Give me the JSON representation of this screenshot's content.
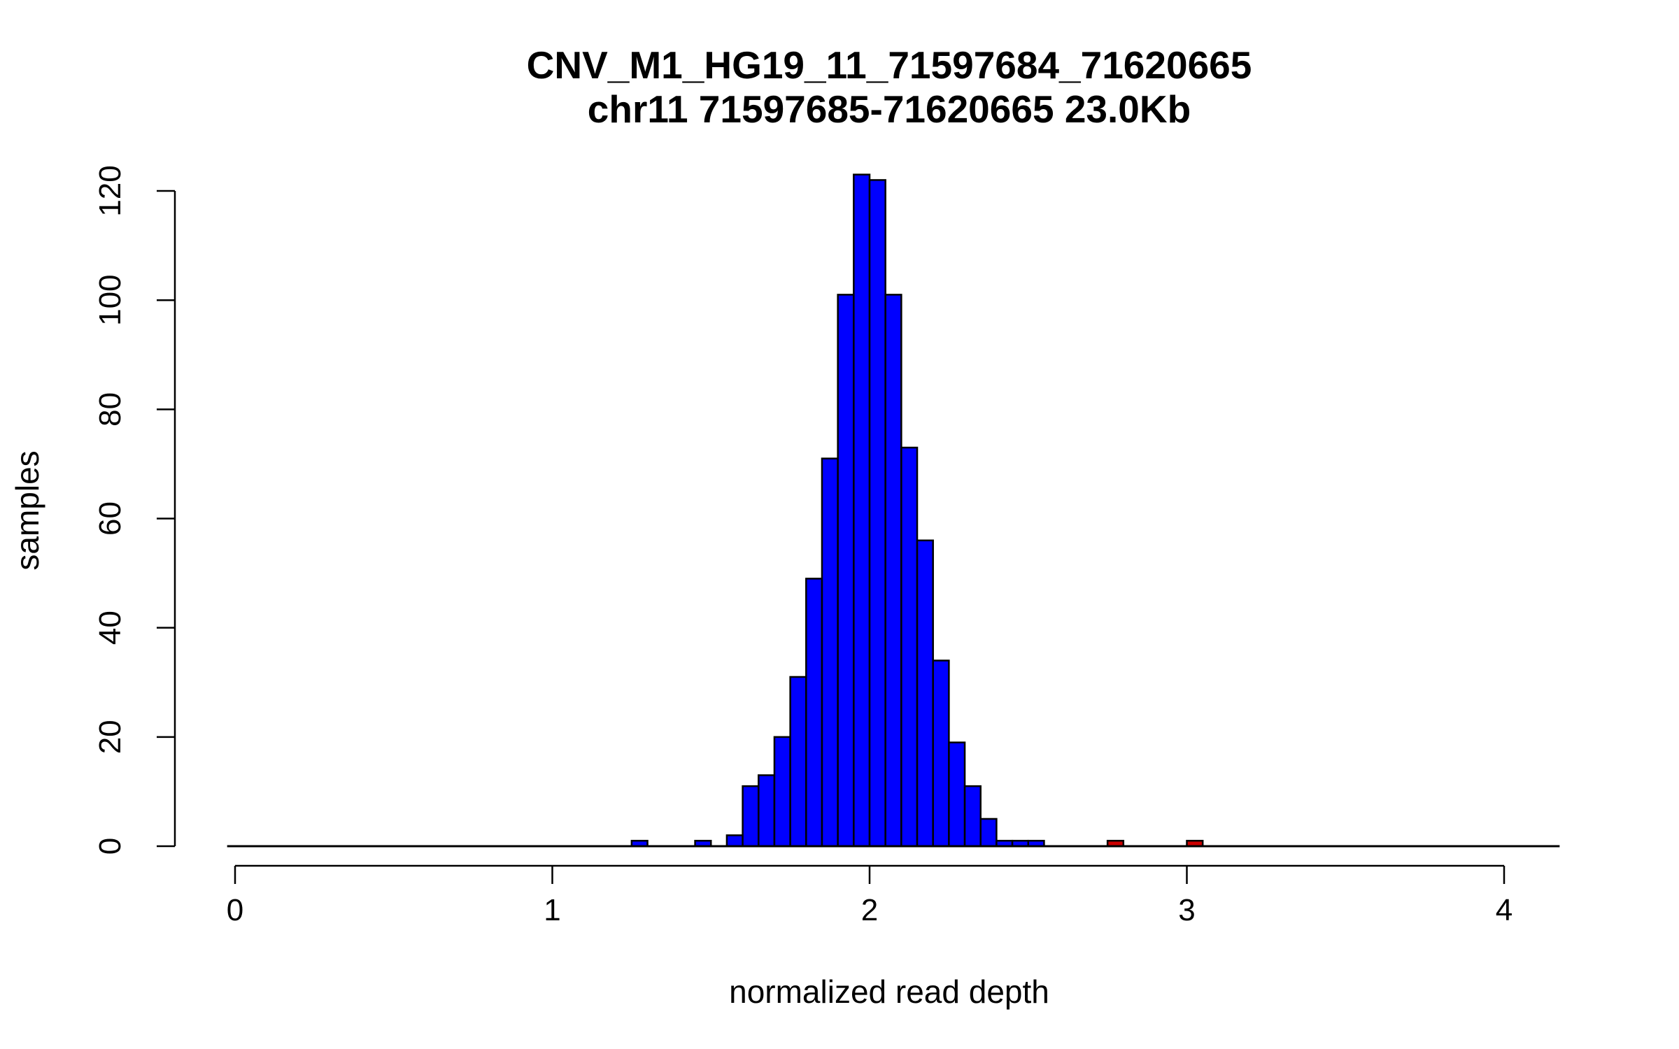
{
  "chart_data": {
    "type": "bar",
    "title": "CNV_M1_HG19_11_71597684_71620665",
    "subtitle": "chr11 71597685-71620665 23.0Kb",
    "xlabel": "normalized read depth",
    "ylabel": "samples",
    "xlim": [
      0,
      4
    ],
    "ylim": [
      0,
      120
    ],
    "x_ticks": [
      "0",
      "1",
      "2",
      "3",
      "4"
    ],
    "y_ticks": [
      "0",
      "20",
      "40",
      "60",
      "80",
      "100",
      "120"
    ],
    "bin_width": 0.05,
    "baseline_range": [
      -0.025,
      4.175
    ],
    "colors": {
      "normal": "#0000ff",
      "outlier": "#cc0000",
      "outline": "#000000"
    },
    "bins": [
      {
        "x0": 1.25,
        "count": 1,
        "group": "normal"
      },
      {
        "x0": 1.45,
        "count": 1,
        "group": "normal"
      },
      {
        "x0": 1.55,
        "count": 2,
        "group": "normal"
      },
      {
        "x0": 1.6,
        "count": 11,
        "group": "normal"
      },
      {
        "x0": 1.65,
        "count": 13,
        "group": "normal"
      },
      {
        "x0": 1.7,
        "count": 20,
        "group": "normal"
      },
      {
        "x0": 1.75,
        "count": 31,
        "group": "normal"
      },
      {
        "x0": 1.8,
        "count": 49,
        "group": "normal"
      },
      {
        "x0": 1.85,
        "count": 71,
        "group": "normal"
      },
      {
        "x0": 1.9,
        "count": 101,
        "group": "normal"
      },
      {
        "x0": 1.95,
        "count": 123,
        "group": "normal"
      },
      {
        "x0": 2.0,
        "count": 122,
        "group": "normal"
      },
      {
        "x0": 2.05,
        "count": 101,
        "group": "normal"
      },
      {
        "x0": 2.1,
        "count": 73,
        "group": "normal"
      },
      {
        "x0": 2.15,
        "count": 56,
        "group": "normal"
      },
      {
        "x0": 2.2,
        "count": 34,
        "group": "normal"
      },
      {
        "x0": 2.25,
        "count": 19,
        "group": "normal"
      },
      {
        "x0": 2.3,
        "count": 11,
        "group": "normal"
      },
      {
        "x0": 2.35,
        "count": 5,
        "group": "normal"
      },
      {
        "x0": 2.4,
        "count": 1,
        "group": "normal"
      },
      {
        "x0": 2.45,
        "count": 1,
        "group": "normal"
      },
      {
        "x0": 2.5,
        "count": 1,
        "group": "normal"
      },
      {
        "x0": 2.75,
        "count": 1,
        "group": "outlier"
      },
      {
        "x0": 3.0,
        "count": 1,
        "group": "outlier"
      }
    ]
  }
}
